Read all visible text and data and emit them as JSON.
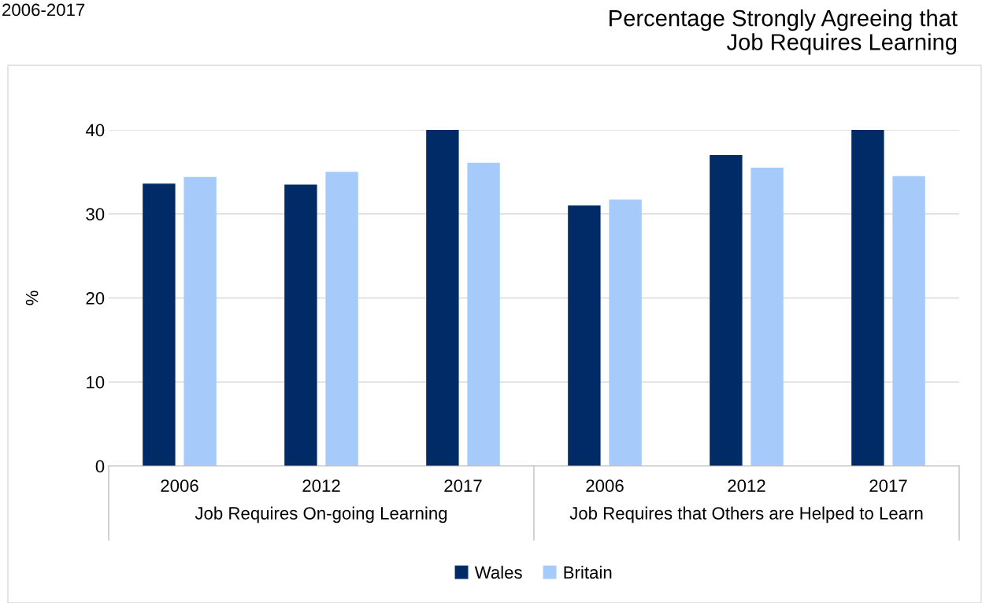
{
  "chart_data": {
    "type": "bar",
    "title": "Percentage Strongly Agreeing that\nJob Requires Learning",
    "ylabel": "%",
    "categories": [
      "2006",
      "2012",
      "2017",
      "2006",
      "2012",
      "2017"
    ],
    "series": [
      {
        "name": "Wales",
        "color": "#002b66",
        "values": [
          33.6,
          33.5,
          40,
          31,
          37,
          40
        ]
      },
      {
        "name": "Britain",
        "color": "#a6cbfa",
        "values": [
          34.4,
          35,
          36.1,
          31.7,
          35.5,
          34.5
        ]
      }
    ],
    "annotations": [
      "2006-2017",
      "Job Requires On-going Learning",
      "Job Requires that Others are Helped to Learn"
    ],
    "ylim": [
      0,
      40
    ],
    "yticks": [
      0,
      10,
      20,
      30,
      40
    ],
    "grid": "y",
    "legend": "bottom"
  }
}
